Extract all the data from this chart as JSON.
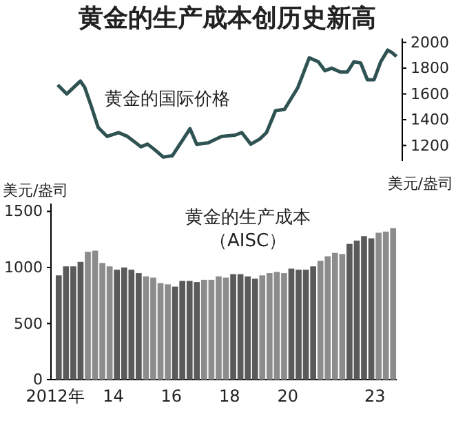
{
  "chart_data": [
    {
      "type": "line",
      "title": "黄金的生产成本创历史新高",
      "ylabel": "美元/盎司",
      "xlim": [
        2012,
        2023.75
      ],
      "ylim": [
        1080,
        2030
      ],
      "yticks": [
        1200,
        1400,
        1600,
        1800,
        2000
      ],
      "tick_labels": "y",
      "grid": false,
      "marker": "none",
      "line_style": "solid",
      "series": [
        {
          "name": "黄金的国际价格",
          "color": "#2f5252",
          "x": [
            2012.09,
            2012.4,
            2012.87,
            2013.02,
            2013.25,
            2013.48,
            2013.79,
            2014.18,
            2014.49,
            2014.95,
            2015.18,
            2015.41,
            2015.72,
            2016.03,
            2016.41,
            2016.64,
            2016.87,
            2017.26,
            2017.72,
            2018.19,
            2018.42,
            2018.73,
            2019.04,
            2019.27,
            2019.58,
            2019.89,
            2020.35,
            2020.74,
            2021.05,
            2021.28,
            2021.51,
            2021.81,
            2022.05,
            2022.28,
            2022.51,
            2022.74,
            2022.97,
            2023.2,
            2023.44,
            2023.59,
            2023.74
          ],
          "values": [
            1670,
            1600,
            1700,
            1650,
            1500,
            1340,
            1270,
            1300,
            1270,
            1190,
            1210,
            1170,
            1110,
            1120,
            1250,
            1330,
            1210,
            1220,
            1270,
            1280,
            1300,
            1210,
            1250,
            1300,
            1470,
            1480,
            1650,
            1880,
            1850,
            1780,
            1800,
            1770,
            1770,
            1850,
            1840,
            1710,
            1710,
            1850,
            1940,
            1920,
            1890
          ]
        }
      ]
    },
    {
      "type": "bar",
      "ylabel": "美元/盎司",
      "xlim": [
        2012,
        2023.75
      ],
      "xticks": [
        {
          "value": 2012,
          "label": "2012年"
        },
        {
          "value": 2014,
          "label": "14"
        },
        {
          "value": 2016,
          "label": "16"
        },
        {
          "value": 2018,
          "label": "18"
        },
        {
          "value": 2020,
          "label": "20"
        },
        {
          "value": 2023,
          "label": "23"
        }
      ],
      "ylim": [
        0,
        1570
      ],
      "yticks": [
        0,
        500,
        1000,
        1500
      ],
      "grid": false,
      "series": [
        {
          "name": "黄金的生产成本（AISC）",
          "x": [
            2012.125,
            2012.375,
            2012.625,
            2012.875,
            2013.125,
            2013.375,
            2013.625,
            2013.875,
            2014.125,
            2014.375,
            2014.625,
            2014.875,
            2015.125,
            2015.375,
            2015.625,
            2015.875,
            2016.125,
            2016.375,
            2016.625,
            2016.875,
            2017.125,
            2017.375,
            2017.625,
            2017.875,
            2018.125,
            2018.375,
            2018.625,
            2018.875,
            2019.125,
            2019.375,
            2019.625,
            2019.875,
            2020.125,
            2020.375,
            2020.625,
            2020.875,
            2021.125,
            2021.375,
            2021.625,
            2021.875,
            2022.125,
            2022.375,
            2022.625,
            2022.875,
            2023.125,
            2023.375,
            2023.625
          ],
          "values": [
            930,
            1010,
            1010,
            1050,
            1140,
            1150,
            1040,
            1010,
            980,
            1000,
            980,
            950,
            920,
            910,
            860,
            850,
            830,
            880,
            880,
            870,
            890,
            890,
            920,
            910,
            940,
            940,
            920,
            900,
            930,
            950,
            960,
            950,
            990,
            980,
            980,
            1010,
            1060,
            1100,
            1130,
            1120,
            1210,
            1240,
            1280,
            1260,
            1310,
            1320,
            1350
          ],
          "colors": [
            "#5a5a5a",
            "#5a5a5a",
            "#5a5a5a",
            "#5a5a5a",
            "#8c8c8c",
            "#8c8c8c",
            "#8c8c8c",
            "#8c8c8c",
            "#5a5a5a",
            "#5a5a5a",
            "#5a5a5a",
            "#5a5a5a",
            "#8c8c8c",
            "#8c8c8c",
            "#8c8c8c",
            "#8c8c8c",
            "#5a5a5a",
            "#5a5a5a",
            "#5a5a5a",
            "#5a5a5a",
            "#8c8c8c",
            "#8c8c8c",
            "#8c8c8c",
            "#8c8c8c",
            "#5a5a5a",
            "#5a5a5a",
            "#5a5a5a",
            "#5a5a5a",
            "#8c8c8c",
            "#8c8c8c",
            "#8c8c8c",
            "#8c8c8c",
            "#5a5a5a",
            "#5a5a5a",
            "#5a5a5a",
            "#5a5a5a",
            "#8c8c8c",
            "#8c8c8c",
            "#8c8c8c",
            "#8c8c8c",
            "#5a5a5a",
            "#5a5a5a",
            "#5a5a5a",
            "#5a5a5a",
            "#8c8c8c",
            "#8c8c8c",
            "#8c8c8c"
          ]
        }
      ]
    }
  ]
}
